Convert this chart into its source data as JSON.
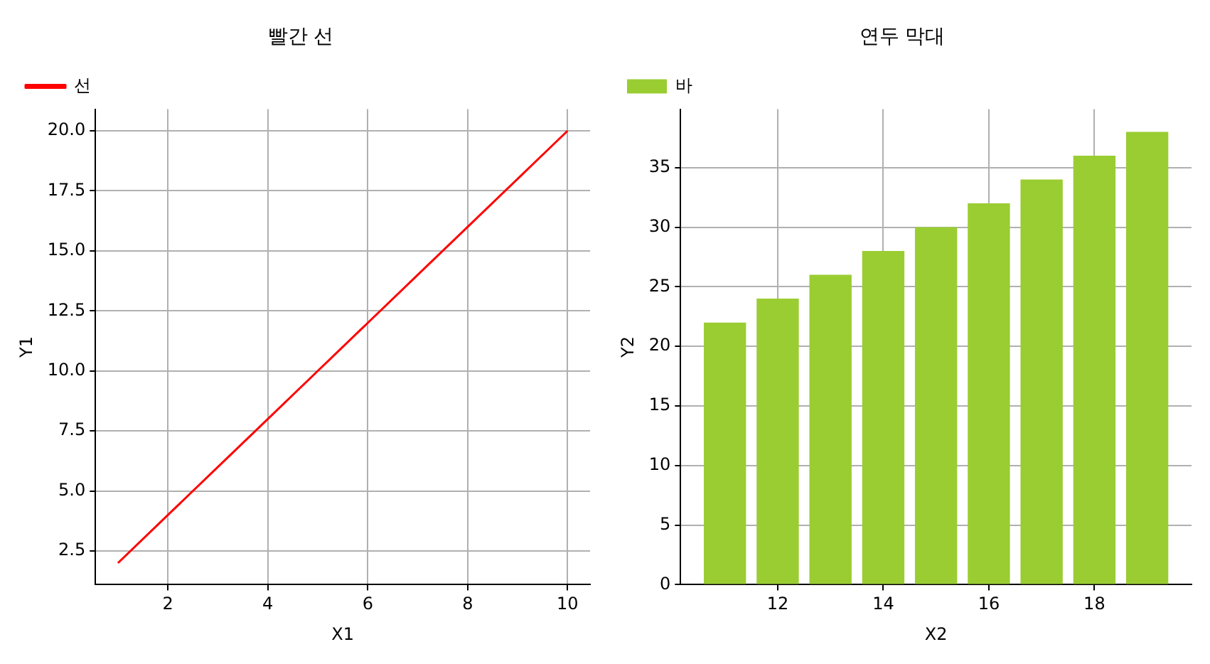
{
  "chart_data": [
    {
      "type": "line",
      "title": "빨간 선",
      "xlabel": "X1",
      "ylabel": "Y1",
      "x": [
        1,
        2,
        3,
        4,
        5,
        6,
        7,
        8,
        9,
        10
      ],
      "series": [
        {
          "name": "선",
          "color": "#ff0000",
          "values": [
            2,
            4,
            6,
            8,
            10,
            12,
            14,
            16,
            18,
            20
          ]
        }
      ],
      "xlim": [
        0.55,
        10.45
      ],
      "ylim": [
        1.1,
        20.9
      ],
      "xticks": [
        2,
        4,
        6,
        8,
        10
      ],
      "yticks": [
        {
          "value": 2.5,
          "label": "2.5"
        },
        {
          "value": 5,
          "label": "5.0"
        },
        {
          "value": 7.5,
          "label": "7.5"
        },
        {
          "value": 10,
          "label": "10.0"
        },
        {
          "value": 12.5,
          "label": "12.5"
        },
        {
          "value": 15,
          "label": "15.0"
        },
        {
          "value": 17.5,
          "label": "17.5"
        },
        {
          "value": 20,
          "label": "20.0"
        }
      ],
      "grid": true,
      "legend": "top left"
    },
    {
      "type": "bar",
      "title": "연두 막대",
      "xlabel": "X2",
      "ylabel": "Y2",
      "x": [
        11,
        12,
        13,
        14,
        15,
        16,
        17,
        18,
        19
      ],
      "series": [
        {
          "name": "바",
          "color": "#9acd32",
          "values": [
            22,
            24,
            26,
            28,
            30,
            32,
            34,
            36,
            38
          ]
        }
      ],
      "xlim": [
        10.16,
        19.84
      ],
      "ylim": [
        0,
        39.9
      ],
      "xticks": [
        12,
        14,
        16,
        18
      ],
      "yticks": [
        0,
        5,
        10,
        15,
        20,
        25,
        30,
        35
      ],
      "grid": true,
      "legend": "top left"
    }
  ]
}
